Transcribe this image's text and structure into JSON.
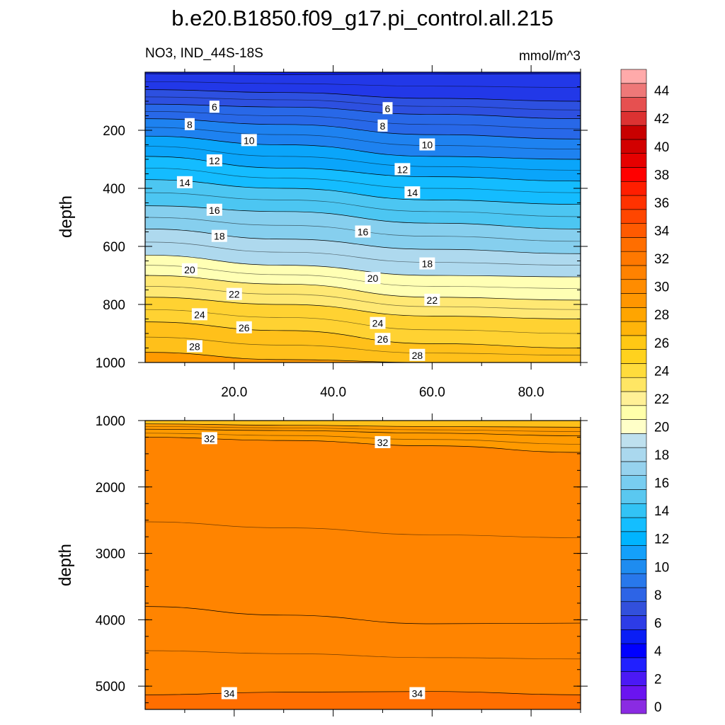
{
  "title": "b.e20.B1850.f09_g17.pi_control.all.215",
  "subtitle_left": "NO3, IND_44S-18S",
  "subtitle_right": "mmol/m^3",
  "chart_data": [
    {
      "type": "contour",
      "panel": "upper",
      "xlim": [
        2,
        90
      ],
      "ylim": [
        1000,
        0
      ],
      "ylabel": "depth",
      "xticks": [
        20,
        40,
        60,
        80
      ],
      "xtick_labels": [
        "20.0",
        "40.0",
        "60.0",
        "80.0"
      ],
      "yticks": [
        200,
        400,
        600,
        800,
        1000
      ],
      "ytick_labels": [
        "200",
        "400",
        "600",
        "800",
        "1000"
      ],
      "contour_levels": [
        4,
        6,
        8,
        10,
        12,
        14,
        16,
        18,
        20,
        22,
        24,
        26,
        28,
        30
      ],
      "isoline_depths": [
        {
          "level": 4,
          "x": [
            2,
            30,
            60,
            90
          ],
          "depth": [
            5,
            8,
            6,
            5
          ]
        },
        {
          "level": 6,
          "x": [
            2,
            30,
            60,
            90
          ],
          "depth": [
            60,
            70,
            90,
            100
          ]
        },
        {
          "level": 8,
          "x": [
            2,
            30,
            60,
            90
          ],
          "depth": [
            110,
            120,
            145,
            160
          ]
        },
        {
          "level": 10,
          "x": [
            2,
            30,
            60,
            90
          ],
          "depth": [
            160,
            180,
            215,
            230
          ]
        },
        {
          "level": 12,
          "x": [
            2,
            30,
            60,
            90
          ],
          "depth": [
            220,
            250,
            290,
            300
          ]
        },
        {
          "level": 14,
          "x": [
            2,
            30,
            60,
            90
          ],
          "depth": [
            290,
            330,
            360,
            375
          ]
        },
        {
          "level": 16,
          "x": [
            2,
            30,
            60,
            90
          ],
          "depth": [
            370,
            400,
            440,
            455
          ]
        },
        {
          "level": 18,
          "x": [
            2,
            30,
            60,
            90
          ],
          "depth": [
            460,
            480,
            520,
            540
          ]
        },
        {
          "level": 20,
          "x": [
            2,
            30,
            60,
            90
          ],
          "depth": [
            540,
            575,
            610,
            625
          ]
        },
        {
          "level": 22,
          "x": [
            2,
            30,
            60,
            90
          ],
          "depth": [
            630,
            665,
            700,
            705
          ]
        },
        {
          "level": 24,
          "x": [
            2,
            30,
            60,
            90
          ],
          "depth": [
            700,
            730,
            775,
            785
          ]
        },
        {
          "level": 26,
          "x": [
            2,
            30,
            60,
            90
          ],
          "depth": [
            775,
            800,
            840,
            850
          ]
        },
        {
          "level": 28,
          "x": [
            2,
            30,
            60,
            90
          ],
          "depth": [
            860,
            890,
            935,
            950
          ]
        },
        {
          "level": 30,
          "x": [
            2,
            30,
            60,
            90
          ],
          "depth": [
            965,
            990,
            1000,
            1000
          ]
        }
      ],
      "contour_labels": [
        {
          "text": "6",
          "x": 16,
          "depth": 120
        },
        {
          "text": "6",
          "x": 51,
          "depth": 125
        },
        {
          "text": "8",
          "x": 11,
          "depth": 180
        },
        {
          "text": "8",
          "x": 50,
          "depth": 185
        },
        {
          "text": "10",
          "x": 23,
          "depth": 235
        },
        {
          "text": "10",
          "x": 59,
          "depth": 250
        },
        {
          "text": "12",
          "x": 16,
          "depth": 305
        },
        {
          "text": "12",
          "x": 54,
          "depth": 335
        },
        {
          "text": "14",
          "x": 10,
          "depth": 380
        },
        {
          "text": "14",
          "x": 56,
          "depth": 415
        },
        {
          "text": "16",
          "x": 16,
          "depth": 475
        },
        {
          "text": "16",
          "x": 46,
          "depth": 550
        },
        {
          "text": "18",
          "x": 17,
          "depth": 565
        },
        {
          "text": "18",
          "x": 59,
          "depth": 660
        },
        {
          "text": "20",
          "x": 11,
          "depth": 680
        },
        {
          "text": "20",
          "x": 48,
          "depth": 710
        },
        {
          "text": "22",
          "x": 20,
          "depth": 765
        },
        {
          "text": "22",
          "x": 60,
          "depth": 785
        },
        {
          "text": "24",
          "x": 13,
          "depth": 835
        },
        {
          "text": "24",
          "x": 49,
          "depth": 865
        },
        {
          "text": "26",
          "x": 22,
          "depth": 880
        },
        {
          "text": "26",
          "x": 50,
          "depth": 920
        },
        {
          "text": "28",
          "x": 12,
          "depth": 945
        },
        {
          "text": "28",
          "x": 57,
          "depth": 975
        }
      ]
    },
    {
      "type": "contour",
      "panel": "lower",
      "xlim": [
        2,
        90
      ],
      "ylim": [
        5350,
        1000
      ],
      "ylabel": "depth",
      "yticks": [
        1000,
        2000,
        3000,
        4000,
        5000
      ],
      "ytick_labels": [
        "1000",
        "2000",
        "3000",
        "4000",
        "5000"
      ],
      "contour_levels": [
        30,
        32,
        34
      ],
      "isoline_depths": [
        {
          "level": 30,
          "x": [
            2,
            30,
            60,
            90
          ],
          "depth": [
            1050,
            1070,
            1090,
            1100
          ]
        },
        {
          "level": 31,
          "x": [
            2,
            30,
            60,
            90
          ],
          "depth": [
            1130,
            1150,
            1190,
            1230
          ]
        },
        {
          "level": 32,
          "x": [
            2,
            30,
            60,
            90
          ],
          "depth": [
            1250,
            1300,
            1380,
            1480
          ]
        },
        {
          "level": 33,
          "x": [
            2,
            30,
            60,
            90
          ],
          "depth": [
            3800,
            3930,
            4060,
            4050
          ]
        },
        {
          "level": 34,
          "x": [
            2,
            30,
            60,
            90
          ],
          "depth": [
            5130,
            5090,
            5080,
            5130
          ]
        }
      ],
      "contour_labels": [
        {
          "text": "32",
          "x": 15,
          "depth": 1270
        },
        {
          "text": "32",
          "x": 50,
          "depth": 1330
        },
        {
          "text": "34",
          "x": 19,
          "depth": 5110
        },
        {
          "text": "34",
          "x": 57,
          "depth": 5110
        }
      ]
    },
    {
      "type": "colorbar",
      "levels": [
        0,
        2,
        4,
        6,
        8,
        10,
        12,
        14,
        16,
        18,
        20,
        22,
        24,
        26,
        28,
        30,
        32,
        34,
        36,
        38,
        40,
        42,
        44
      ],
      "level_labels": [
        "0",
        "2",
        "4",
        "6",
        "8",
        "10",
        "12",
        "14",
        "16",
        "18",
        "20",
        "22",
        "24",
        "26",
        "28",
        "30",
        "32",
        "34",
        "36",
        "38",
        "40",
        "42",
        "44"
      ],
      "bin_colors": [
        "#8a2be2",
        "#6a14f0",
        "#4b19f5",
        "#2020ff",
        "#0000ff",
        "#0a1ef5",
        "#2d3ce6",
        "#3250dc",
        "#2d64e6",
        "#2878eb",
        "#1e8cf0",
        "#14a0fa",
        "#00b4ff",
        "#14beff",
        "#32c3f5",
        "#5ac8f0",
        "#78cdf0",
        "#96d2ee",
        "#aad8ee",
        "#bee0ee",
        "#ffffc8",
        "#ffffaa",
        "#fff096",
        "#ffe664",
        "#ffdc3c",
        "#ffd21e",
        "#ffc814",
        "#ffb40a",
        "#ffa500",
        "#ff9600",
        "#ff8c00",
        "#ff8200",
        "#ff7800",
        "#ff6e00",
        "#ff5a00",
        "#ff4600",
        "#ff3200",
        "#ff1e00",
        "#ff0000",
        "#e60000",
        "#d20000",
        "#c80000",
        "#dc3232",
        "#e65050",
        "#ee7878",
        "#ffaaaa"
      ]
    }
  ]
}
